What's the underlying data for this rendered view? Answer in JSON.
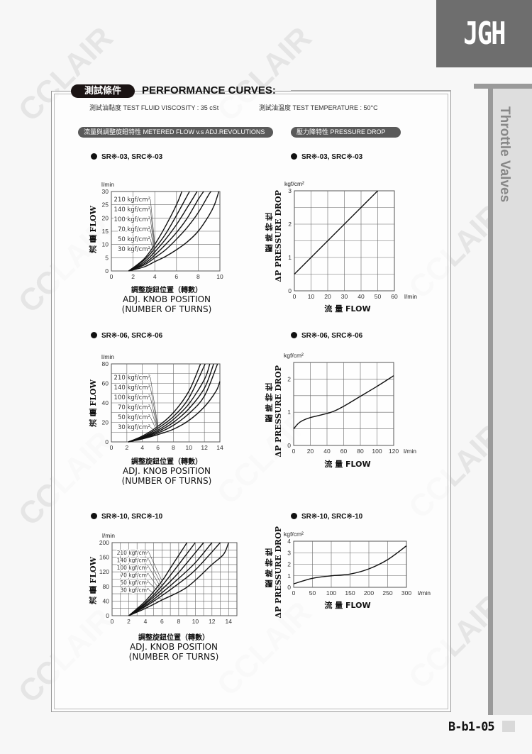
{
  "brand": {
    "logo": "JGH",
    "watermark": "CCLAIR"
  },
  "side_title": "Throttle Valves",
  "header": {
    "pill": "測試條件",
    "title": "PERFORMANCE CURVES:",
    "viscosity": "測試油黏度  TEST FLUID VISCOSITY : 35 cSt",
    "temperature": "測試油溫度  TEST TEMPERATURE : 50°C"
  },
  "sections": {
    "left": "流量與調整旋鈕特性  METERED FLOW v.s ADJ.REVOLUTIONS",
    "right": "壓力降特性  PRESSURE DROP"
  },
  "labels": {
    "knob_cn": "調整旋鈕位置（轉數）",
    "knob_en1": "ADJ. KNOB POSITION",
    "knob_en2": "(NUMBER OF TURNS)",
    "flow_y": "流  量 FLOW",
    "flow_x": "流   量 FLOW",
    "pd_cn": "壓 降 特 性",
    "pd_en": "ΔP PRESSURE DROP"
  },
  "footer": {
    "page": "B-b1-05"
  },
  "chart_data": [
    {
      "type": "line",
      "title": "SR※-03, SRC※-03",
      "xlabel": "ADJ. KNOB POSITION (NUMBER OF TURNS)",
      "ylabel": "FLOW",
      "yunit": "l/min",
      "xlim": [
        0,
        10
      ],
      "ylim": [
        0,
        30
      ],
      "xticks": [
        0,
        2,
        4,
        6,
        8,
        10
      ],
      "yticks": [
        0,
        5,
        10,
        15,
        20,
        25,
        30
      ],
      "grid": true,
      "xgrid": 2,
      "ygrid": 5,
      "series": [
        {
          "name": "210 kgf/cm²",
          "points": [
            [
              1.6,
              0
            ],
            [
              3,
              4.5
            ],
            [
              4,
              10
            ],
            [
              5,
              17
            ],
            [
              6,
              25
            ],
            [
              6.5,
              30
            ]
          ]
        },
        {
          "name": "140 kgf/cm²",
          "points": [
            [
              1.6,
              0
            ],
            [
              3,
              4
            ],
            [
              4,
              8.5
            ],
            [
              5,
              14
            ],
            [
              6,
              21
            ],
            [
              7,
              28.5
            ],
            [
              7.2,
              30
            ]
          ]
        },
        {
          "name": "100 kgf/cm²",
          "points": [
            [
              1.6,
              0
            ],
            [
              3,
              3.3
            ],
            [
              4,
              7.2
            ],
            [
              5,
              12
            ],
            [
              6,
              17.5
            ],
            [
              7,
              24
            ],
            [
              7.9,
              30
            ]
          ]
        },
        {
          "name": "70 kgf/cm²",
          "points": [
            [
              1.6,
              0
            ],
            [
              3,
              2.7
            ],
            [
              4,
              6
            ],
            [
              5,
              10
            ],
            [
              6,
              14.5
            ],
            [
              7,
              20
            ],
            [
              8,
              27
            ],
            [
              8.5,
              30
            ]
          ]
        },
        {
          "name": "50 kgf/cm²",
          "points": [
            [
              1.6,
              0
            ],
            [
              3,
              2.2
            ],
            [
              4,
              5
            ],
            [
              5,
              8
            ],
            [
              6,
              12
            ],
            [
              7,
              16.5
            ],
            [
              8,
              22
            ],
            [
              9,
              29
            ],
            [
              9.2,
              30
            ]
          ]
        },
        {
          "name": "30 kgf/cm²",
          "points": [
            [
              1.6,
              0
            ],
            [
              3,
              1.5
            ],
            [
              4,
              3.5
            ],
            [
              5,
              5.5
            ],
            [
              6,
              8
            ],
            [
              7,
              11
            ],
            [
              8,
              15
            ],
            [
              9,
              21
            ],
            [
              9.5,
              25
            ],
            [
              9.9,
              30
            ]
          ]
        }
      ]
    },
    {
      "type": "line",
      "title": "SR※-03, SRC※-03",
      "xlabel": "FLOW",
      "xunit": "l/min",
      "ylabel": "ΔP PRESSURE DROP",
      "yunit": "kgf/cm²",
      "xlim": [
        0,
        60
      ],
      "ylim": [
        0,
        3
      ],
      "xticks": [
        0,
        10,
        20,
        30,
        40,
        50,
        60
      ],
      "yticks": [
        0,
        1,
        2,
        3
      ],
      "grid": true,
      "xgrid": 10,
      "ygrid": 0.5,
      "series": [
        {
          "points": [
            [
              0,
              0.5
            ],
            [
              50,
              3
            ]
          ]
        }
      ]
    },
    {
      "type": "line",
      "title": "SR※-06, SRC※-06",
      "xlabel": "ADJ. KNOB POSITION (NUMBER OF TURNS)",
      "ylabel": "FLOW",
      "yunit": "l/min",
      "xlim": [
        0,
        14
      ],
      "ylim": [
        0,
        80
      ],
      "xticks": [
        0,
        2,
        4,
        6,
        8,
        10,
        12,
        14
      ],
      "yticks": [
        0,
        20,
        40,
        60,
        80
      ],
      "grid": true,
      "xgrid": 2,
      "ygrid": 10,
      "series": [
        {
          "name": "210 kgf/cm²",
          "points": [
            [
              2.2,
              0
            ],
            [
              4,
              6
            ],
            [
              6,
              16
            ],
            [
              8,
              30
            ],
            [
              10,
              52
            ],
            [
              11.5,
              80
            ]
          ]
        },
        {
          "name": "140 kgf/cm²",
          "points": [
            [
              2.2,
              0
            ],
            [
              4,
              5
            ],
            [
              6,
              14
            ],
            [
              8,
              26
            ],
            [
              10,
              45
            ],
            [
              12.1,
              80
            ]
          ]
        },
        {
          "name": "100 kgf/cm²",
          "points": [
            [
              2.2,
              0
            ],
            [
              4,
              4.5
            ],
            [
              6,
              12
            ],
            [
              8,
              23
            ],
            [
              10,
              39
            ],
            [
              12,
              64
            ],
            [
              12.7,
              80
            ]
          ]
        },
        {
          "name": "70 kgf/cm²",
          "points": [
            [
              2.2,
              0
            ],
            [
              4,
              4
            ],
            [
              6,
              10.5
            ],
            [
              8,
              20
            ],
            [
              10,
              34
            ],
            [
              12,
              55
            ],
            [
              13.2,
              80
            ]
          ]
        },
        {
          "name": "50 kgf/cm²",
          "points": [
            [
              2.2,
              0
            ],
            [
              4,
              3.5
            ],
            [
              6,
              9
            ],
            [
              8,
              17
            ],
            [
              10,
              29
            ],
            [
              12,
              47
            ],
            [
              13.7,
              80
            ]
          ]
        },
        {
          "name": "30 kgf/cm²",
          "points": [
            [
              2.2,
              0
            ],
            [
              4,
              3
            ],
            [
              6,
              7.5
            ],
            [
              8,
              13
            ],
            [
              10,
              22
            ],
            [
              12,
              36
            ],
            [
              13.5,
              52
            ],
            [
              14,
              62
            ]
          ]
        }
      ]
    },
    {
      "type": "line",
      "title": "SR※-06, SRC※-06",
      "xlabel": "FLOW",
      "xunit": "l/min",
      "ylabel": "ΔP PRESSURE DROP",
      "yunit": "kgf/cm²",
      "xlim": [
        0,
        120
      ],
      "ylim": [
        0,
        2.5
      ],
      "xticks": [
        0,
        20,
        40,
        60,
        80,
        100,
        120
      ],
      "yticks": [
        0,
        1,
        2
      ],
      "grid": true,
      "xgrid": 20,
      "ygrid": 0.5,
      "series": [
        {
          "points": [
            [
              0,
              0.5
            ],
            [
              5,
              0.65
            ],
            [
              10,
              0.74
            ],
            [
              20,
              0.84
            ],
            [
              45,
              1.0
            ],
            [
              60,
              1.18
            ],
            [
              80,
              1.48
            ],
            [
              100,
              1.78
            ],
            [
              120,
              2.1
            ]
          ]
        }
      ]
    },
    {
      "type": "line",
      "title": "SR※-10, SRC※-10",
      "xlabel": "ADJ. KNOB POSITION (NUMBER OF TURNS)",
      "ylabel": "FLOW",
      "yunit": "l/min",
      "xlim": [
        0,
        15
      ],
      "ylim": [
        0,
        200
      ],
      "xticks": [
        0,
        2,
        4,
        6,
        8,
        10,
        12,
        14
      ],
      "yticks": [
        0,
        40,
        80,
        120,
        160,
        200
      ],
      "grid": true,
      "xgrid": 1,
      "ygrid": 20,
      "series": [
        {
          "name": "210 kgf/cm²",
          "points": [
            [
              2,
              0
            ],
            [
              4,
              40
            ],
            [
              6,
              95
            ],
            [
              7,
              130
            ],
            [
              9,
              200
            ]
          ]
        },
        {
          "name": "140 kgf/cm²",
          "points": [
            [
              2,
              0
            ],
            [
              4,
              35
            ],
            [
              6,
              82
            ],
            [
              8,
              140
            ],
            [
              10,
              200
            ]
          ]
        },
        {
          "name": "100 kgf/cm²",
          "points": [
            [
              2,
              0
            ],
            [
              4,
              32
            ],
            [
              6,
              72
            ],
            [
              8,
              118
            ],
            [
              11,
              200
            ]
          ]
        },
        {
          "name": "70 kgf/cm²",
          "points": [
            [
              2,
              0
            ],
            [
              4,
              28
            ],
            [
              6,
              63
            ],
            [
              8,
              102
            ],
            [
              10,
              145
            ],
            [
              12,
              200
            ]
          ]
        },
        {
          "name": "50 kgf/cm²",
          "points": [
            [
              2,
              0
            ],
            [
              4,
              25
            ],
            [
              6,
              55
            ],
            [
              8,
              88
            ],
            [
              10,
              125
            ],
            [
              13,
              200
            ]
          ]
        },
        {
          "name": "30 kgf/cm²",
          "points": [
            [
              2,
              0
            ],
            [
              4,
              20
            ],
            [
              6,
              43
            ],
            [
              9,
              78
            ],
            [
              12,
              140
            ],
            [
              13.4,
              168
            ],
            [
              14,
              200
            ]
          ]
        }
      ]
    },
    {
      "type": "line",
      "title": "SR※-10, SRC※-10",
      "xlabel": "FLOW",
      "xunit": "l/min",
      "ylabel": "ΔP PRESSURE DROP",
      "yunit": "kgf/cm²",
      "xlim": [
        0,
        300
      ],
      "ylim": [
        0,
        4
      ],
      "xticks": [
        0,
        50,
        100,
        150,
        200,
        250,
        300
      ],
      "yticks": [
        0,
        1,
        2,
        3,
        4
      ],
      "grid": true,
      "xgrid": 50,
      "ygrid": 1,
      "series": [
        {
          "points": [
            [
              0,
              0.3
            ],
            [
              50,
              0.78
            ],
            [
              100,
              1.0
            ],
            [
              150,
              1.15
            ],
            [
              200,
              1.6
            ],
            [
              250,
              2.4
            ],
            [
              300,
              3.6
            ]
          ]
        }
      ]
    }
  ]
}
